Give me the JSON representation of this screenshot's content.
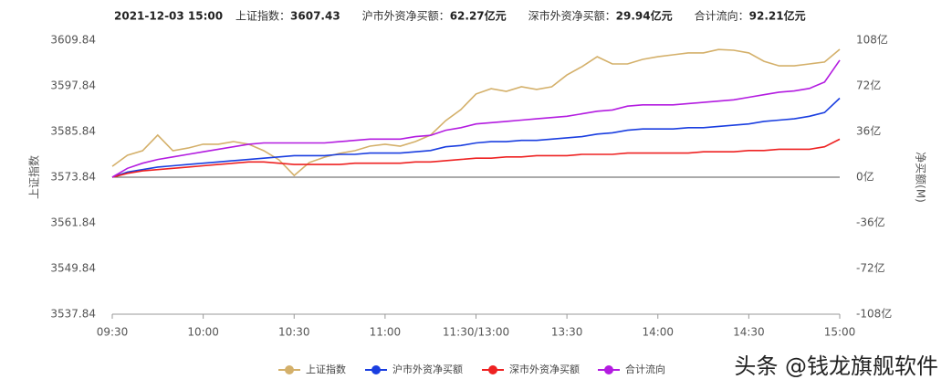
{
  "chart_data": {
    "type": "line",
    "datetime": "2021-12-03  15:00",
    "info": [
      {
        "label": "上证指数：",
        "value": "3607.43"
      },
      {
        "label": "沪市外资净买额：",
        "value": "62.27亿元"
      },
      {
        "label": "深市外资净买额：",
        "value": "29.94亿元"
      },
      {
        "label": "合计流向：",
        "value": "92.21亿元"
      }
    ],
    "ylabel": "上证指数",
    "y2label": "净买额(M)",
    "categories": [
      "09:30",
      null,
      null,
      null,
      null,
      null,
      "10:00",
      null,
      null,
      null,
      null,
      null,
      "10:30",
      null,
      null,
      null,
      null,
      null,
      "11:00",
      null,
      null,
      null,
      null,
      null,
      "11:30/13:00",
      null,
      null,
      null,
      null,
      null,
      "13:30",
      null,
      null,
      null,
      null,
      null,
      "14:00",
      null,
      null,
      null,
      null,
      null,
      "14:30",
      null,
      null,
      null,
      null,
      null,
      "15:00"
    ],
    "ylim": [
      3537.84,
      3609.84
    ],
    "yticks": [
      3537.84,
      3549.84,
      3561.84,
      3573.84,
      3585.84,
      3597.84,
      3609.84
    ],
    "y2lim": [
      -108,
      108
    ],
    "y2ticks": [
      {
        "value": -108,
        "label": "-108亿"
      },
      {
        "value": -72,
        "label": "-72亿"
      },
      {
        "value": -36,
        "label": "-36亿"
      },
      {
        "value": 0,
        "label": "0亿"
      },
      {
        "value": 36,
        "label": "36亿"
      },
      {
        "value": 72,
        "label": "72亿"
      },
      {
        "value": 108,
        "label": "108亿"
      }
    ],
    "series": [
      {
        "name": "上证指数",
        "color": "#d4b06a",
        "values": [
          3576.7,
          3579.6,
          3580.8,
          3584.9,
          3580.8,
          3581.5,
          3582.5,
          3582.5,
          3583.2,
          3582.5,
          3580.8,
          3578.4,
          3574.3,
          3577.7,
          3579.1,
          3580.1,
          3580.8,
          3582.0,
          3582.5,
          3582.0,
          3583.2,
          3584.9,
          3588.7,
          3591.6,
          3595.7,
          3597.1,
          3596.4,
          3597.6,
          3596.9,
          3597.6,
          3600.7,
          3602.9,
          3605.5,
          3603.6,
          3603.6,
          3604.8,
          3605.5,
          3606.0,
          3606.5,
          3606.5,
          3607.4,
          3607.2,
          3606.5,
          3604.3,
          3603.1,
          3603.1,
          3603.6,
          3604.1,
          3607.43
        ]
      },
      {
        "name": "沪市外资净买额",
        "color": "#1a3ee0",
        "axis": "y2",
        "values": [
          0,
          4,
          6,
          8,
          9,
          10,
          11,
          12,
          13,
          14,
          15,
          16,
          17,
          17,
          17,
          18,
          18,
          19,
          19,
          19,
          20,
          21,
          24,
          25,
          27,
          28,
          28,
          29,
          29,
          30,
          31,
          32,
          34,
          35,
          37,
          38,
          38,
          38,
          39,
          39,
          40,
          41,
          42,
          44,
          45,
          46,
          48,
          51,
          62.27
        ]
      },
      {
        "name": "深市外资净买额",
        "color": "#ee2222",
        "axis": "y2",
        "values": [
          0,
          3,
          5,
          6,
          7,
          8,
          9,
          10,
          11,
          12,
          12,
          11,
          10,
          10,
          10,
          10,
          11,
          11,
          11,
          11,
          12,
          12,
          13,
          14,
          15,
          15,
          16,
          16,
          17,
          17,
          17,
          18,
          18,
          18,
          19,
          19,
          19,
          19,
          19,
          20,
          20,
          20,
          21,
          21,
          22,
          22,
          22,
          24,
          29.94
        ]
      },
      {
        "name": "合计流向",
        "color": "#b31ce0",
        "axis": "y2",
        "values": [
          0,
          7,
          11,
          14,
          16,
          18,
          20,
          22,
          24,
          26,
          27,
          27,
          27,
          27,
          27,
          28,
          29,
          30,
          30,
          30,
          32,
          33,
          37,
          39,
          42,
          43,
          44,
          45,
          46,
          47,
          48,
          50,
          52,
          53,
          56,
          57,
          57,
          57,
          58,
          59,
          60,
          61,
          63,
          65,
          67,
          68,
          70,
          75,
          92.21
        ]
      }
    ],
    "watermark": "头条 @钱龙旗舰软件"
  }
}
